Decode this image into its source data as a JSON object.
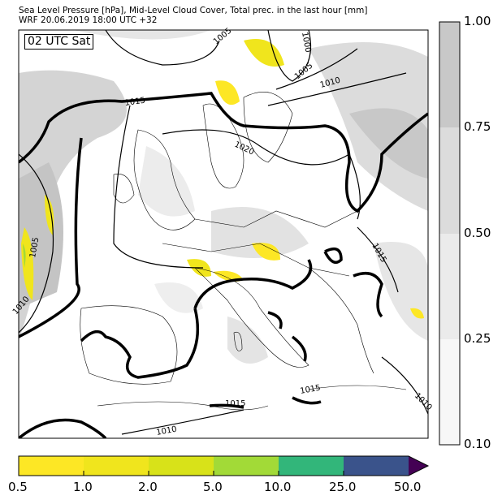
{
  "header": {
    "title": "Sea Level Pressure [hPa], Mid-Level Cloud Cover, Total prec. in the last hour [mm]",
    "subtitle": "WRF 20.06.2019 18:00 UTC +32"
  },
  "map": {
    "valid_time_label": "02 UTC Sat",
    "isobar_labels": [
      "1005",
      "1000",
      "1005",
      "1010",
      "1015",
      "1020",
      "1005",
      "1010",
      "1015",
      "1015",
      "1015",
      "1010",
      "1010"
    ]
  },
  "cloud_colorbar": {
    "ticks": [
      "1.00",
      "0.75",
      "0.50",
      "0.25",
      "0.10"
    ],
    "colors": [
      "#c8c8c8",
      "#dcdcdc",
      "#ebebeb",
      "#f7f7f7"
    ]
  },
  "precip_colorbar": {
    "ticks": [
      "0.5",
      "1.0",
      "2.0",
      "5.0",
      "10.0",
      "25.0",
      "50.0"
    ],
    "colors": [
      "#fde725",
      "#f0e51d",
      "#d8e219",
      "#a2da37",
      "#32b67a",
      "#3a538b",
      "#440154"
    ]
  }
}
